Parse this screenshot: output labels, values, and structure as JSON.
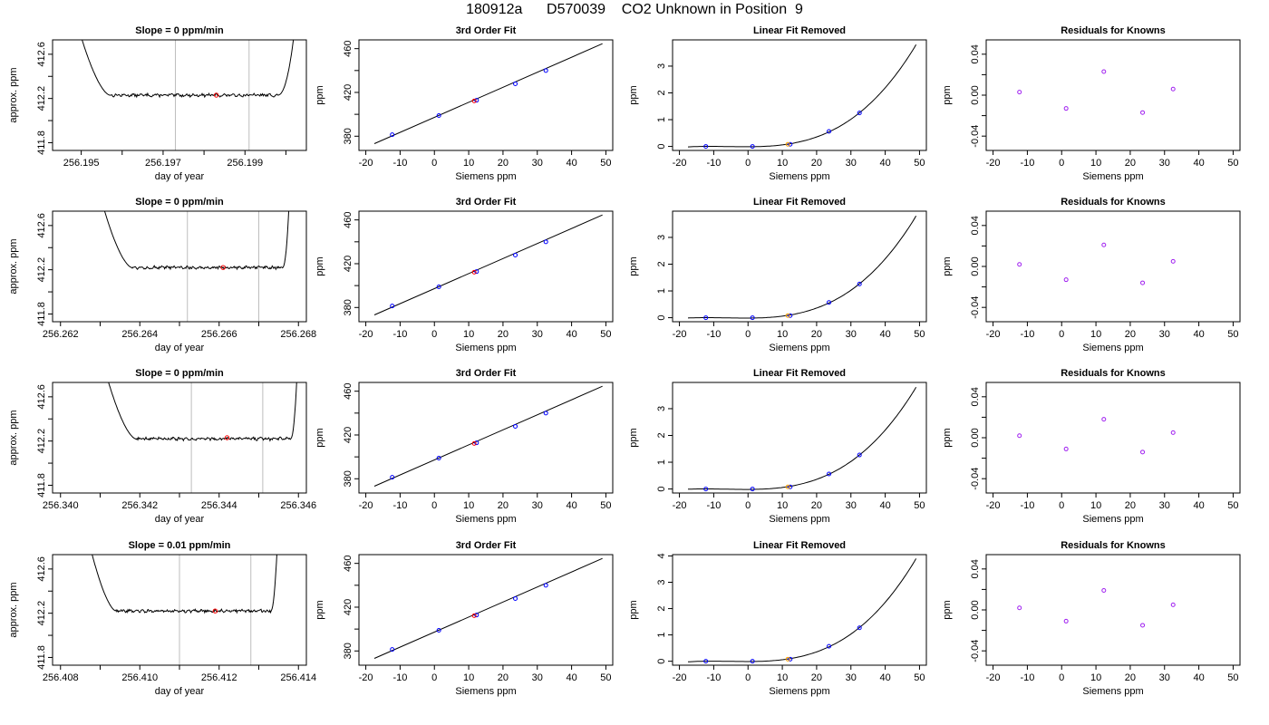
{
  "header": {
    "title": "180912a      D570039    CO2 Unknown in Position  9"
  },
  "colors": {
    "axis": "#000000",
    "line": "#000000",
    "vline": "#bebebe",
    "known_point": "#0000ff",
    "unknown_point": "#ff0000",
    "residual_point": "#a020f0",
    "unknown_fit": "#ffa500"
  },
  "chart_data": [
    {
      "type": "line",
      "title": "Slope =  0  ppm/min",
      "xlabel": "day of year",
      "ylabel": "approx. ppm",
      "xlim": [
        256.1943,
        256.2005
      ],
      "ylim": [
        411.73,
        412.73
      ],
      "xticks": [
        256.195,
        256.196,
        256.197,
        256.198,
        256.199,
        256.2
      ],
      "xticklabels": [
        "256.195",
        "",
        "256.197",
        "",
        "256.199",
        ""
      ],
      "yticks": [
        411.8,
        412.0,
        412.2,
        412.4,
        412.6
      ],
      "yticklabels": [
        "411.8",
        "",
        "412.2",
        "",
        "412.6"
      ],
      "trace": {
        "start": 256.1949,
        "flat_start": 256.1957,
        "flat_end": 256.1998,
        "end": 256.2003,
        "level": 412.23
      },
      "vlines": [
        256.1973,
        256.1991
      ],
      "point": {
        "x": 256.1983,
        "y": 412.23
      }
    },
    {
      "type": "scatter",
      "title": "3rd Order Fit",
      "xlabel": "Siemens ppm",
      "ylabel": "ppm",
      "xlim": [
        -22,
        52
      ],
      "ylim": [
        367,
        468
      ],
      "xticks": [
        -20,
        -10,
        0,
        10,
        20,
        30,
        40,
        50
      ],
      "yticks": [
        380,
        400,
        420,
        440,
        460
      ],
      "yticklabels": [
        "380",
        "",
        "420",
        "",
        "460"
      ],
      "fit_x": [
        -17.5,
        49
      ],
      "fit_y": [
        373.2,
        464.5
      ],
      "knowns": [
        {
          "x": -12.3,
          "y": 381.4
        },
        {
          "x": 1.3,
          "y": 398.9
        },
        {
          "x": 12.3,
          "y": 412.8
        },
        {
          "x": 23.6,
          "y": 427.9
        },
        {
          "x": 32.5,
          "y": 440.0
        }
      ],
      "unknown": {
        "x": 11.6,
        "y": 412.2
      }
    },
    {
      "type": "scatter",
      "title": "Linear Fit Removed",
      "xlabel": "Siemens ppm",
      "ylabel": "ppm",
      "xlim": [
        -22,
        52
      ],
      "ylim": [
        -0.15,
        3.98
      ],
      "xticks": [
        -20,
        -10,
        0,
        10,
        20,
        30,
        40,
        50
      ],
      "yticks": [
        0,
        1,
        2,
        3
      ],
      "curve_range": [
        -17.5,
        49
      ],
      "knowns": [
        {
          "x": -12.3,
          "y": 0.0
        },
        {
          "x": 1.3,
          "y": 0.0
        },
        {
          "x": 12.3,
          "y": 0.08
        },
        {
          "x": 23.6,
          "y": 0.56
        },
        {
          "x": 32.5,
          "y": 1.25
        }
      ],
      "unknown": {
        "x": 11.6,
        "y": 0.08
      }
    },
    {
      "type": "scatter",
      "title": "Residuals for Knowns",
      "xlabel": "Siemens ppm",
      "ylabel": "ppm",
      "xlim": [
        -22,
        52
      ],
      "ylim": [
        -0.054,
        0.054
      ],
      "xticks": [
        -20,
        -10,
        0,
        10,
        20,
        30,
        40,
        50
      ],
      "yticks": [
        -0.04,
        -0.02,
        0,
        0.02,
        0.04
      ],
      "yticklabels": [
        "-0.04",
        "",
        "0.00",
        "",
        "0.04"
      ],
      "points": [
        {
          "x": -12.3,
          "y": 0.003
        },
        {
          "x": 1.3,
          "y": -0.013
        },
        {
          "x": 12.3,
          "y": 0.023
        },
        {
          "x": 23.6,
          "y": -0.017
        },
        {
          "x": 32.5,
          "y": 0.006
        }
      ]
    },
    {
      "type": "line",
      "title": "Slope =  0  ppm/min",
      "xlabel": "day of year",
      "ylabel": "approx. ppm",
      "xlim": [
        256.2618,
        256.2682
      ],
      "ylim": [
        411.73,
        412.73
      ],
      "xticks": [
        256.262,
        256.263,
        256.264,
        256.265,
        256.266,
        256.267,
        256.268
      ],
      "xticklabels": [
        "256.262",
        "",
        "256.264",
        "",
        "256.266",
        "",
        "256.268"
      ],
      "yticks": [
        411.8,
        412.0,
        412.2,
        412.4,
        412.6
      ],
      "yticklabels": [
        "411.8",
        "",
        "412.2",
        "",
        "412.6"
      ],
      "trace": {
        "start": 256.263,
        "flat_start": 256.2638,
        "flat_end": 256.2676,
        "end": 256.2678,
        "level": 412.22
      },
      "vlines": [
        256.2652,
        256.267
      ],
      "point": {
        "x": 256.2661,
        "y": 412.22
      }
    },
    {
      "type": "scatter",
      "title": "3rd Order Fit",
      "xlabel": "Siemens ppm",
      "ylabel": "ppm",
      "xlim": [
        -22,
        52
      ],
      "ylim": [
        367,
        468
      ],
      "xticks": [
        -20,
        -10,
        0,
        10,
        20,
        30,
        40,
        50
      ],
      "yticks": [
        380,
        400,
        420,
        440,
        460
      ],
      "yticklabels": [
        "380",
        "",
        "420",
        "",
        "460"
      ],
      "fit_x": [
        -17.5,
        49
      ],
      "fit_y": [
        373.2,
        464.5
      ],
      "knowns": [
        {
          "x": -12.3,
          "y": 381.4
        },
        {
          "x": 1.3,
          "y": 398.9
        },
        {
          "x": 12.3,
          "y": 412.8
        },
        {
          "x": 23.6,
          "y": 427.9
        },
        {
          "x": 32.5,
          "y": 440.0
        }
      ],
      "unknown": {
        "x": 11.6,
        "y": 412.2
      }
    },
    {
      "type": "scatter",
      "title": "Linear Fit Removed",
      "xlabel": "Siemens ppm",
      "ylabel": "ppm",
      "xlim": [
        -22,
        52
      ],
      "ylim": [
        -0.15,
        3.98
      ],
      "xticks": [
        -20,
        -10,
        0,
        10,
        20,
        30,
        40,
        50
      ],
      "yticks": [
        0,
        1,
        2,
        3
      ],
      "curve_range": [
        -17.5,
        49
      ],
      "knowns": [
        {
          "x": -12.3,
          "y": 0.0
        },
        {
          "x": 1.3,
          "y": 0.0
        },
        {
          "x": 12.3,
          "y": 0.08
        },
        {
          "x": 23.6,
          "y": 0.57
        },
        {
          "x": 32.5,
          "y": 1.26
        }
      ],
      "unknown": {
        "x": 11.6,
        "y": 0.08
      }
    },
    {
      "type": "scatter",
      "title": "Residuals for Knowns",
      "xlabel": "Siemens ppm",
      "ylabel": "ppm",
      "xlim": [
        -22,
        52
      ],
      "ylim": [
        -0.054,
        0.054
      ],
      "xticks": [
        -20,
        -10,
        0,
        10,
        20,
        30,
        40,
        50
      ],
      "yticks": [
        -0.04,
        -0.02,
        0,
        0.02,
        0.04
      ],
      "yticklabels": [
        "-0.04",
        "",
        "0.00",
        "",
        "0.04"
      ],
      "points": [
        {
          "x": -12.3,
          "y": 0.002
        },
        {
          "x": 1.3,
          "y": -0.013
        },
        {
          "x": 12.3,
          "y": 0.021
        },
        {
          "x": 23.6,
          "y": -0.016
        },
        {
          "x": 32.5,
          "y": 0.005
        }
      ]
    },
    {
      "type": "line",
      "title": "Slope =  0  ppm/min",
      "xlabel": "day of year",
      "ylabel": "approx. ppm",
      "xlim": [
        256.3398,
        256.3462
      ],
      "ylim": [
        411.73,
        412.73
      ],
      "xticks": [
        256.34,
        256.341,
        256.342,
        256.343,
        256.344,
        256.345,
        256.346
      ],
      "xticklabels": [
        "256.340",
        "",
        "256.342",
        "",
        "256.344",
        "",
        "256.346"
      ],
      "yticks": [
        411.8,
        412.0,
        412.2,
        412.4,
        412.6
      ],
      "yticklabels": [
        "411.8",
        "",
        "412.2",
        "",
        "412.6"
      ],
      "trace": {
        "start": 256.3411,
        "flat_start": 256.3419,
        "flat_end": 256.3458,
        "end": 256.346,
        "level": 412.22
      },
      "vlines": [
        256.3433,
        256.3451
      ],
      "point": {
        "x": 256.3442,
        "y": 412.23
      }
    },
    {
      "type": "scatter",
      "title": "3rd Order Fit",
      "xlabel": "Siemens ppm",
      "ylabel": "ppm",
      "xlim": [
        -22,
        52
      ],
      "ylim": [
        367,
        468
      ],
      "xticks": [
        -20,
        -10,
        0,
        10,
        20,
        30,
        40,
        50
      ],
      "yticks": [
        380,
        400,
        420,
        440,
        460
      ],
      "yticklabels": [
        "380",
        "",
        "420",
        "",
        "460"
      ],
      "fit_x": [
        -17.5,
        49
      ],
      "fit_y": [
        373.2,
        464.5
      ],
      "knowns": [
        {
          "x": -12.3,
          "y": 381.4
        },
        {
          "x": 1.3,
          "y": 398.9
        },
        {
          "x": 12.3,
          "y": 412.8
        },
        {
          "x": 23.6,
          "y": 427.9
        },
        {
          "x": 32.5,
          "y": 440.0
        }
      ],
      "unknown": {
        "x": 11.6,
        "y": 412.2
      }
    },
    {
      "type": "scatter",
      "title": "Linear Fit Removed",
      "xlabel": "Siemens ppm",
      "ylabel": "ppm",
      "xlim": [
        -22,
        52
      ],
      "ylim": [
        -0.15,
        3.98
      ],
      "xticks": [
        -20,
        -10,
        0,
        10,
        20,
        30,
        40,
        50
      ],
      "yticks": [
        0,
        1,
        2,
        3
      ],
      "curve_range": [
        -17.5,
        49
      ],
      "knowns": [
        {
          "x": -12.3,
          "y": 0.0
        },
        {
          "x": 1.3,
          "y": 0.0
        },
        {
          "x": 12.3,
          "y": 0.08
        },
        {
          "x": 23.6,
          "y": 0.56
        },
        {
          "x": 32.5,
          "y": 1.27
        }
      ],
      "unknown": {
        "x": 11.6,
        "y": 0.08
      }
    },
    {
      "type": "scatter",
      "title": "Residuals for Knowns",
      "xlabel": "Siemens ppm",
      "ylabel": "ppm",
      "xlim": [
        -22,
        52
      ],
      "ylim": [
        -0.054,
        0.054
      ],
      "xticks": [
        -20,
        -10,
        0,
        10,
        20,
        30,
        40,
        50
      ],
      "yticks": [
        -0.04,
        -0.02,
        0,
        0.02,
        0.04
      ],
      "yticklabels": [
        "-0.04",
        "",
        "0.00",
        "",
        "0.04"
      ],
      "points": [
        {
          "x": -12.3,
          "y": 0.002
        },
        {
          "x": 1.3,
          "y": -0.011
        },
        {
          "x": 12.3,
          "y": 0.018
        },
        {
          "x": 23.6,
          "y": -0.014
        },
        {
          "x": 32.5,
          "y": 0.005
        }
      ]
    },
    {
      "type": "line",
      "title": "Slope =  0.01  ppm/min",
      "xlabel": "day of year",
      "ylabel": "approx. ppm",
      "xlim": [
        256.4078,
        256.4142
      ],
      "ylim": [
        411.73,
        412.73
      ],
      "xticks": [
        256.408,
        256.409,
        256.41,
        256.411,
        256.412,
        256.413,
        256.414
      ],
      "xticklabels": [
        "256.408",
        "",
        "256.410",
        "",
        "256.412",
        "",
        "256.414"
      ],
      "yticks": [
        411.8,
        412.0,
        412.2,
        412.4,
        412.6
      ],
      "yticklabels": [
        "411.8",
        "",
        "412.2",
        "",
        "412.6"
      ],
      "trace": {
        "start": 256.4087,
        "flat_start": 256.4094,
        "flat_end": 256.4133,
        "end": 256.4135,
        "level": 412.22
      },
      "vlines": [
        256.411,
        256.4128
      ],
      "point": {
        "x": 256.4119,
        "y": 412.22
      }
    },
    {
      "type": "scatter",
      "title": "3rd Order Fit",
      "xlabel": "Siemens ppm",
      "ylabel": "ppm",
      "xlim": [
        -22,
        52
      ],
      "ylim": [
        367,
        468
      ],
      "xticks": [
        -20,
        -10,
        0,
        10,
        20,
        30,
        40,
        50
      ],
      "yticks": [
        380,
        400,
        420,
        440,
        460
      ],
      "yticklabels": [
        "380",
        "",
        "420",
        "",
        "460"
      ],
      "fit_x": [
        -17.5,
        49
      ],
      "fit_y": [
        373.2,
        464.5
      ],
      "knowns": [
        {
          "x": -12.3,
          "y": 381.4
        },
        {
          "x": 1.3,
          "y": 398.9
        },
        {
          "x": 12.3,
          "y": 412.8
        },
        {
          "x": 23.6,
          "y": 427.9
        },
        {
          "x": 32.5,
          "y": 440.0
        }
      ],
      "unknown": {
        "x": 11.6,
        "y": 412.2
      }
    },
    {
      "type": "scatter",
      "title": "Linear Fit Removed",
      "xlabel": "Siemens ppm",
      "ylabel": "ppm",
      "xlim": [
        -22,
        52
      ],
      "ylim": [
        -0.15,
        4.05
      ],
      "xticks": [
        -20,
        -10,
        0,
        10,
        20,
        30,
        40,
        50
      ],
      "yticks": [
        0,
        1,
        2,
        3,
        4
      ],
      "curve_range": [
        -17.5,
        49
      ],
      "knowns": [
        {
          "x": -12.3,
          "y": 0.0
        },
        {
          "x": 1.3,
          "y": 0.0
        },
        {
          "x": 12.3,
          "y": 0.08
        },
        {
          "x": 23.6,
          "y": 0.57
        },
        {
          "x": 32.5,
          "y": 1.27
        }
      ],
      "unknown": {
        "x": 11.6,
        "y": 0.08
      }
    },
    {
      "type": "scatter",
      "title": "Residuals for Knowns",
      "xlabel": "Siemens ppm",
      "ylabel": "ppm",
      "xlim": [
        -22,
        52
      ],
      "ylim": [
        -0.054,
        0.054
      ],
      "xticks": [
        -20,
        -10,
        0,
        10,
        20,
        30,
        40,
        50
      ],
      "yticks": [
        -0.04,
        -0.02,
        0,
        0.02,
        0.04
      ],
      "yticklabels": [
        "-0.04",
        "",
        "0.00",
        "",
        "0.04"
      ],
      "points": [
        {
          "x": -12.3,
          "y": 0.002
        },
        {
          "x": 1.3,
          "y": -0.011
        },
        {
          "x": 12.3,
          "y": 0.019
        },
        {
          "x": 23.6,
          "y": -0.015
        },
        {
          "x": 32.5,
          "y": 0.005
        }
      ]
    }
  ]
}
